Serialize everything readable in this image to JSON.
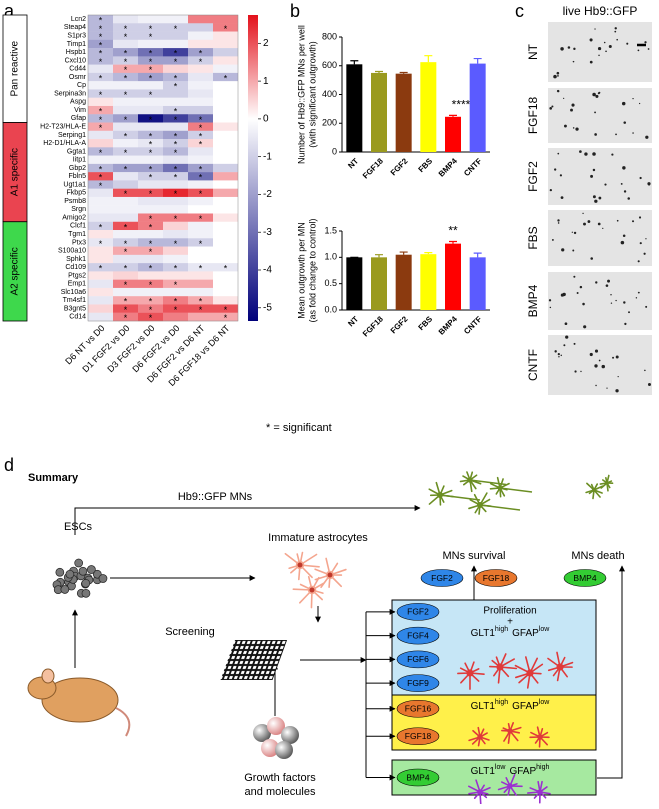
{
  "panel_labels": [
    "a",
    "b",
    "c",
    "d"
  ],
  "chart_data": [
    {
      "type": "heatmap",
      "rows": [
        "Lcn2",
        "Steap4",
        "S1pr3",
        "Timp1",
        "Hspb1",
        "Cxcl10",
        "Cd44",
        "Osmr",
        "Cp",
        "Serpina3n",
        "Aspg",
        "Vim",
        "Gfap",
        "H2-T23/HLA-E",
        "Serping1",
        "H2-D1/HLA-A",
        "Ggta1",
        "Iitp1",
        "Gbp2",
        "Fbln5",
        "Ugt1a1",
        "Fkbp5",
        "Psmb8",
        "Srgn",
        "Amigo2",
        "Clcf1",
        "Tgm1",
        "Ptx3",
        "S100a10",
        "Sphk1",
        "Cd109",
        "Ptgs2",
        "Emp1",
        "Slc10a6",
        "Tm4sf1",
        "B3gnt5",
        "Cd14"
      ],
      "columns": [
        "D6 NT vs D0",
        "D1 FGF2 vs D0",
        "D3 FGF2 vs D0",
        "D6 FGF2 vs D0",
        "D6 FGF2 vs D6 NT",
        "D6 FGF18 vs D6 NT"
      ],
      "values": [
        [
          -1.5,
          -0.5,
          -0.3,
          -0.3,
          1.5,
          1.5
        ],
        [
          -1.5,
          -1,
          -1,
          -1,
          -1,
          1.5
        ],
        [
          -1.5,
          -1,
          -1,
          -1,
          -0.3,
          0.3
        ],
        [
          -2,
          -0.5,
          -0.3,
          -0.3,
          0.3,
          0.3
        ],
        [
          -1.5,
          -2,
          -3,
          -4,
          -2,
          -1
        ],
        [
          -1.5,
          -1,
          -2,
          -2,
          -1,
          0.3
        ],
        [
          -0.5,
          1,
          1,
          0.5,
          0.3,
          -0.3
        ],
        [
          -1,
          -1.5,
          -2,
          -1.5,
          -0.5,
          -1.5
        ],
        [
          -0.3,
          -0.3,
          -0.3,
          -1,
          -0.3,
          0
        ],
        [
          -1,
          -1,
          -1,
          -1,
          -0.5,
          0
        ],
        [
          0.3,
          -0.3,
          -0.3,
          -0.3,
          -0.3,
          0
        ],
        [
          1,
          -0.5,
          -0.5,
          -1,
          -1,
          0
        ],
        [
          -1.5,
          -2,
          -5,
          -4,
          -3,
          0
        ],
        [
          1,
          -0.5,
          -0.5,
          -0.5,
          1.5,
          0.3
        ],
        [
          -0.5,
          -1,
          -1.5,
          -2,
          -1,
          0
        ],
        [
          0.5,
          -0.3,
          -0.5,
          -1,
          0.5,
          0
        ],
        [
          -1.5,
          -1,
          -1,
          -1.5,
          -0.5,
          0
        ],
        [
          -0.3,
          -0.3,
          -0.3,
          -0.5,
          -0.3,
          0
        ],
        [
          -1.5,
          -2,
          -2,
          -3,
          -2,
          -1
        ],
        [
          2,
          -0.5,
          -1,
          -1,
          -3,
          1
        ],
        [
          -1.5,
          -1,
          -0.5,
          -0.5,
          -0.3,
          0
        ],
        [
          -0.5,
          2,
          2,
          2.5,
          2,
          1
        ],
        [
          -0.3,
          -0.3,
          -0.5,
          -0.5,
          -0.3,
          0
        ],
        [
          -0.3,
          -0.3,
          -0.3,
          -0.3,
          0,
          0
        ],
        [
          -0.5,
          -0.5,
          1.5,
          1.5,
          1.5,
          0.3
        ],
        [
          -1,
          2,
          1.5,
          0.5,
          -0.3,
          0
        ],
        [
          0.3,
          -0.3,
          -0.3,
          -0.5,
          -0.3,
          0
        ],
        [
          -0.5,
          -1,
          -1.5,
          -1.5,
          -1,
          0
        ],
        [
          0.3,
          1,
          1,
          0.5,
          0,
          0
        ],
        [
          0.3,
          -0.5,
          -0.5,
          -0.3,
          0,
          0
        ],
        [
          -1,
          -1,
          -1.5,
          -1,
          -0.5,
          -0.5
        ],
        [
          0.3,
          0.5,
          0.3,
          0.3,
          0.3,
          0
        ],
        [
          -0.5,
          1.5,
          1.5,
          1,
          1,
          0
        ],
        [
          0.3,
          -0.3,
          -0.3,
          -0.3,
          -0.3,
          0
        ],
        [
          -0.5,
          1,
          1,
          1.5,
          1,
          0.3
        ],
        [
          0.5,
          2,
          1.5,
          2,
          2,
          2
        ],
        [
          -0.5,
          1.5,
          2,
          1.5,
          1,
          1
        ]
      ],
      "significant": [
        [
          1,
          0,
          0,
          0,
          0,
          0
        ],
        [
          1,
          1,
          1,
          1,
          0,
          1
        ],
        [
          1,
          1,
          1,
          0,
          0,
          0
        ],
        [
          1,
          0,
          0,
          0,
          0,
          0
        ],
        [
          1,
          1,
          1,
          1,
          1,
          0
        ],
        [
          1,
          1,
          1,
          1,
          1,
          0
        ],
        [
          0,
          1,
          1,
          0,
          0,
          0
        ],
        [
          1,
          1,
          1,
          1,
          0,
          1
        ],
        [
          0,
          0,
          0,
          1,
          0,
          0
        ],
        [
          1,
          1,
          1,
          0,
          0,
          0
        ],
        [
          0,
          0,
          0,
          0,
          0,
          0
        ],
        [
          1,
          0,
          0,
          1,
          0,
          0
        ],
        [
          1,
          1,
          1,
          1,
          1,
          0
        ],
        [
          1,
          0,
          0,
          0,
          1,
          0
        ],
        [
          0,
          1,
          1,
          1,
          1,
          0
        ],
        [
          0,
          0,
          1,
          1,
          1,
          0
        ],
        [
          1,
          1,
          1,
          1,
          0,
          0
        ],
        [
          0,
          0,
          0,
          0,
          0,
          0
        ],
        [
          1,
          1,
          1,
          1,
          1,
          0
        ],
        [
          1,
          0,
          1,
          1,
          1,
          0
        ],
        [
          1,
          0,
          0,
          0,
          0,
          0
        ],
        [
          0,
          1,
          1,
          1,
          1,
          0
        ],
        [
          0,
          0,
          0,
          0,
          0,
          0
        ],
        [
          0,
          0,
          0,
          0,
          0,
          0
        ],
        [
          0,
          0,
          1,
          1,
          1,
          0
        ],
        [
          1,
          1,
          1,
          0,
          0,
          0
        ],
        [
          0,
          0,
          0,
          0,
          0,
          0
        ],
        [
          1,
          1,
          1,
          1,
          1,
          0
        ],
        [
          0,
          1,
          1,
          0,
          0,
          0
        ],
        [
          0,
          0,
          0,
          0,
          0,
          0
        ],
        [
          1,
          1,
          1,
          1,
          1,
          1
        ],
        [
          0,
          0,
          0,
          0,
          0,
          0
        ],
        [
          0,
          1,
          1,
          1,
          0,
          0
        ],
        [
          0,
          0,
          0,
          0,
          0,
          0
        ],
        [
          0,
          1,
          1,
          1,
          1,
          0
        ],
        [
          0,
          1,
          1,
          1,
          1,
          1
        ],
        [
          0,
          1,
          1,
          0,
          0,
          1
        ]
      ],
      "sig_marker": "*",
      "legend_note": "* = significant",
      "groups": [
        {
          "name": "Pan reactive",
          "rows": 13,
          "color": "#ffffff"
        },
        {
          "name": "A1 specific",
          "rows": 12,
          "color": "#ea4450"
        },
        {
          "name": "A2 specific",
          "rows": 12,
          "color": "#3ed84c"
        }
      ],
      "clim": [
        -5.35,
        2.75
      ],
      "cticks": [
        2,
        1,
        0,
        -1,
        -2,
        -3,
        -4,
        -5
      ],
      "colors": {
        "low": "#00007a",
        "mid": "#ffffff",
        "high": "#e3111b"
      }
    },
    {
      "type": "bar",
      "ylabel": [
        "Number of Hb9::GFP MNs per well",
        "(with significant outgrowth)"
      ],
      "categories": [
        "NT",
        "FGF18",
        "FGF2",
        "FBS",
        "BMP4",
        "CNTF"
      ],
      "values": [
        610,
        550,
        545,
        625,
        245,
        615
      ],
      "errors": [
        25,
        10,
        8,
        45,
        10,
        35
      ],
      "colors": [
        "#000000",
        "#9a9a1e",
        "#8b3a0f",
        "#ffff00",
        "#ff0000",
        "#5b5bff"
      ],
      "ylim": [
        0,
        800
      ],
      "yticks": [
        0,
        200,
        400,
        600,
        800
      ],
      "annotations": [
        {
          "x": "BMP4",
          "text": "****"
        }
      ]
    },
    {
      "type": "bar",
      "ylabel": [
        "Mean outgrowth per MN",
        "(as fold change to control)"
      ],
      "categories": [
        "NT",
        "FGF18",
        "FGF2",
        "FBS",
        "BMP4",
        "CNTF"
      ],
      "values": [
        1.0,
        1.0,
        1.05,
        1.06,
        1.26,
        1.0
      ],
      "errors": [
        0,
        0.05,
        0.05,
        0.03,
        0.04,
        0.08
      ],
      "colors": [
        "#000000",
        "#9a9a1e",
        "#8b3a0f",
        "#ffff00",
        "#ff0000",
        "#5b5bff"
      ],
      "ylim": [
        0,
        1.5
      ],
      "yticks": [
        {
          "value": 0,
          "label": "0.0"
        },
        0.5,
        {
          "value": 1,
          "label": "1.0"
        },
        1.5
      ],
      "annotations": [
        {
          "x": "BMP4",
          "text": "**"
        }
      ]
    }
  ],
  "panel_c": {
    "title": "live Hb9::GFP",
    "labels": [
      "NT",
      "FGF18",
      "FGF2",
      "FBS",
      "BMP4",
      "CNTF"
    ]
  },
  "summary": {
    "heading": "Summary",
    "mns": "Hb9::GFP MNs",
    "escs": "ESCs",
    "immature": "Immature astrocytes",
    "screening": "Screening",
    "growth_factors": [
      "Growth factors",
      "and molecules"
    ],
    "survival": "MNs survival",
    "death": "MNs death",
    "survival_factors": [
      {
        "name": "FGF2",
        "color": "#2f86e8"
      },
      {
        "name": "FGF18",
        "color": "#e8772e"
      }
    ],
    "death_factors": [
      {
        "name": "BMP4",
        "color": "#33cc33"
      }
    ],
    "boxes": [
      {
        "factors": [
          "FGF2",
          "FGF4",
          "FGF6",
          "FGF9"
        ],
        "factor_color": "#2f86e8",
        "fill": "#c6e6f6",
        "cell_color": "#e03a3a",
        "lines": [
          "Proliferation",
          "+"
        ],
        "glt1": "GLT1",
        "glt1_level": "high",
        "gfap": "GFAP",
        "gfap_level": "low"
      },
      {
        "factors": [
          "FGF16",
          "FGF18"
        ],
        "factor_color": "#e8772e",
        "fill": "#fff04a",
        "cell_color": "#e03a3a",
        "lines": [],
        "glt1": "GLT1",
        "glt1_level": "high",
        "gfap": "GFAP",
        "gfap_level": "low"
      },
      {
        "factors": [
          "BMP4"
        ],
        "factor_color": "#33cc33",
        "fill": "#a6e9a0",
        "cell_color": "#9b30d0",
        "lines": [],
        "glt1": "GLT1",
        "glt1_level": "low",
        "gfap": "GFAP",
        "gfap_level": "high"
      }
    ]
  }
}
